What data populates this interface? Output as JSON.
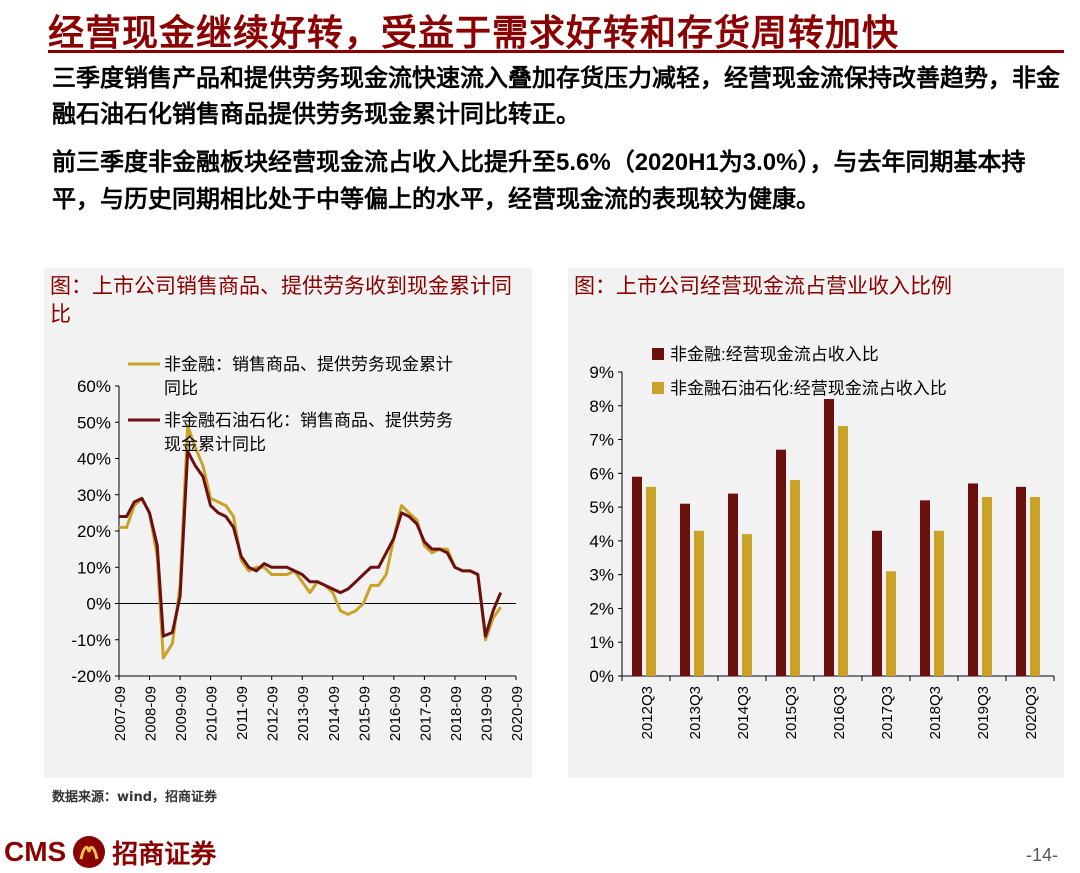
{
  "header": {
    "title": "经营现金继续好转，受益于需求好转和存货周转加快"
  },
  "body": {
    "para1": "三季度销售产品和提供劳务现金流快速流入叠加存货压力减轻，经营现金流保持改善趋势，非金融石油石化销售商品提供劳务现金累计同比转正。",
    "para2_a": "前三季度非金融板块经营现金流占收入比提升至",
    "para2_b": "5.6%",
    "para2_c": "（",
    "para2_d": "2020H1为3.0%",
    "para2_e": "），与去年同期基本持平，与历史同期相比处于中等偏上的水平，经营现金流的表现较为健康。"
  },
  "chart_left_title": "图：上市公司销售商品、提供劳务收到现金累计同比",
  "chart_right_title": "图：上市公司经营现金流占营业收入比例",
  "source": "数据来源：wind，招商证券",
  "footer": {
    "brand": "CMS",
    "name": "招商证券",
    "page": "-14-"
  },
  "chart_data": [
    {
      "type": "line",
      "title": "图：上市公司销售商品、提供劳务收到现金累计同比",
      "ylim": [
        -20,
        60
      ],
      "yticks": [
        "-20%",
        "-10%",
        "0%",
        "10%",
        "20%",
        "30%",
        "40%",
        "50%",
        "60%"
      ],
      "xticks": [
        "2007-09",
        "2008-09",
        "2009-09",
        "2010-09",
        "2011-09",
        "2012-09",
        "2013-09",
        "2014-09",
        "2015-09",
        "2016-09",
        "2017-09",
        "2018-09",
        "2019-09",
        "2020-09"
      ],
      "legend_position": "top",
      "series": [
        {
          "name": "非金融：销售商品、提供劳务现金累计同比",
          "color": "#C9A227",
          "points": [
            [
              2007.75,
              21
            ],
            [
              2008.0,
              21
            ],
            [
              2008.25,
              27
            ],
            [
              2008.5,
              29
            ],
            [
              2008.75,
              25
            ],
            [
              2009.0,
              13
            ],
            [
              2009.2,
              -15
            ],
            [
              2009.5,
              -11
            ],
            [
              2009.75,
              5
            ],
            [
              2010.0,
              49
            ],
            [
              2010.25,
              43
            ],
            [
              2010.5,
              38
            ],
            [
              2010.75,
              29
            ],
            [
              2011.0,
              28
            ],
            [
              2011.25,
              27
            ],
            [
              2011.5,
              24
            ],
            [
              2011.75,
              12
            ],
            [
              2012.0,
              9
            ],
            [
              2012.25,
              10
            ],
            [
              2012.5,
              10
            ],
            [
              2012.75,
              8
            ],
            [
              2013.0,
              8
            ],
            [
              2013.25,
              8
            ],
            [
              2013.5,
              9
            ],
            [
              2013.75,
              6
            ],
            [
              2014.0,
              3
            ],
            [
              2014.25,
              6
            ],
            [
              2014.5,
              5
            ],
            [
              2014.75,
              3
            ],
            [
              2015.0,
              -2
            ],
            [
              2015.25,
              -3
            ],
            [
              2015.5,
              -2
            ],
            [
              2015.75,
              0
            ],
            [
              2016.0,
              5
            ],
            [
              2016.25,
              5
            ],
            [
              2016.5,
              8
            ],
            [
              2016.75,
              18
            ],
            [
              2017.0,
              27
            ],
            [
              2017.25,
              25
            ],
            [
              2017.5,
              23
            ],
            [
              2017.75,
              16
            ],
            [
              2018.0,
              14
            ],
            [
              2018.25,
              15
            ],
            [
              2018.5,
              15
            ],
            [
              2018.75,
              10
            ],
            [
              2019.0,
              9
            ],
            [
              2019.25,
              9
            ],
            [
              2019.5,
              8
            ],
            [
              2019.75,
              -10
            ],
            [
              2020.0,
              -4
            ],
            [
              2020.25,
              -1
            ]
          ]
        },
        {
          "name": "非金融石油石化：销售商品、提供劳务现金累计同比",
          "color": "#6B0F0F",
          "points": [
            [
              2007.75,
              24
            ],
            [
              2008.0,
              24
            ],
            [
              2008.25,
              28
            ],
            [
              2008.5,
              29
            ],
            [
              2008.75,
              25
            ],
            [
              2009.0,
              16
            ],
            [
              2009.2,
              -9
            ],
            [
              2009.5,
              -8
            ],
            [
              2009.75,
              2
            ],
            [
              2010.0,
              42
            ],
            [
              2010.25,
              38
            ],
            [
              2010.5,
              35
            ],
            [
              2010.75,
              27
            ],
            [
              2011.0,
              25
            ],
            [
              2011.25,
              24
            ],
            [
              2011.5,
              21
            ],
            [
              2011.75,
              13
            ],
            [
              2012.0,
              10
            ],
            [
              2012.25,
              9
            ],
            [
              2012.5,
              11
            ],
            [
              2012.75,
              10
            ],
            [
              2013.0,
              10
            ],
            [
              2013.25,
              10
            ],
            [
              2013.5,
              9
            ],
            [
              2013.75,
              8
            ],
            [
              2014.0,
              6
            ],
            [
              2014.25,
              6
            ],
            [
              2014.5,
              5
            ],
            [
              2014.75,
              4
            ],
            [
              2015.0,
              3
            ],
            [
              2015.25,
              4
            ],
            [
              2015.5,
              6
            ],
            [
              2015.75,
              8
            ],
            [
              2016.0,
              10
            ],
            [
              2016.25,
              10
            ],
            [
              2016.5,
              14
            ],
            [
              2016.75,
              18
            ],
            [
              2017.0,
              25
            ],
            [
              2017.25,
              24
            ],
            [
              2017.5,
              22
            ],
            [
              2017.75,
              17
            ],
            [
              2018.0,
              15
            ],
            [
              2018.25,
              15
            ],
            [
              2018.5,
              14
            ],
            [
              2018.75,
              10
            ],
            [
              2019.0,
              9
            ],
            [
              2019.25,
              9
            ],
            [
              2019.5,
              8
            ],
            [
              2019.75,
              -9
            ],
            [
              2020.0,
              -2
            ],
            [
              2020.25,
              3
            ]
          ]
        }
      ]
    },
    {
      "type": "bar",
      "title": "图：上市公司经营现金流占营业收入比例",
      "categories": [
        "2012Q3",
        "2013Q3",
        "2014Q3",
        "2015Q3",
        "2016Q3",
        "2017Q3",
        "2018Q3",
        "2019Q3",
        "2020Q3"
      ],
      "ylim": [
        0,
        9
      ],
      "yticks": [
        "0%",
        "1%",
        "2%",
        "3%",
        "4%",
        "5%",
        "6%",
        "7%",
        "8%",
        "9%"
      ],
      "legend_position": "top",
      "series": [
        {
          "name": "非金融:经营现金流占收入比",
          "color": "#6B0F0F",
          "values": [
            5.9,
            5.1,
            5.4,
            6.7,
            8.2,
            4.3,
            5.2,
            5.7,
            5.6
          ]
        },
        {
          "name": "非金融石油石化:经营现金流占收入比",
          "color": "#C9A227",
          "values": [
            5.6,
            4.3,
            4.2,
            5.8,
            7.4,
            3.1,
            4.3,
            5.3,
            5.3
          ]
        }
      ]
    }
  ]
}
